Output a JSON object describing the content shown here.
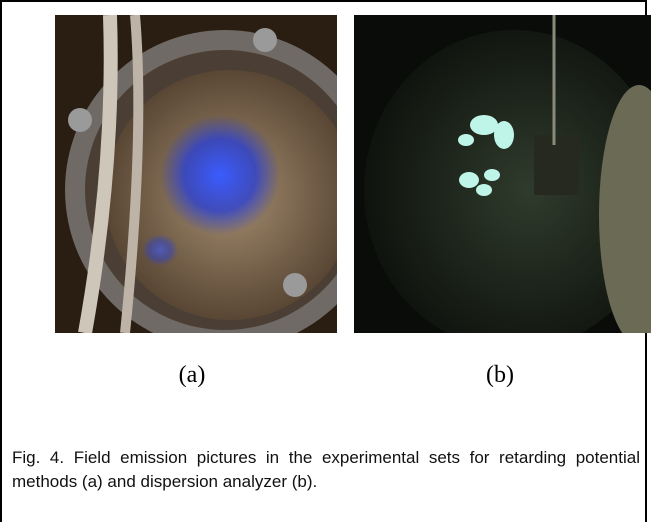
{
  "figure": {
    "panels": [
      {
        "label": "(a)"
      },
      {
        "label": "(b)"
      }
    ],
    "caption": "Fig. 4. Field emission pictures in the experimental sets for retarding potential methods (a) and dispersion analyzer (b)."
  }
}
